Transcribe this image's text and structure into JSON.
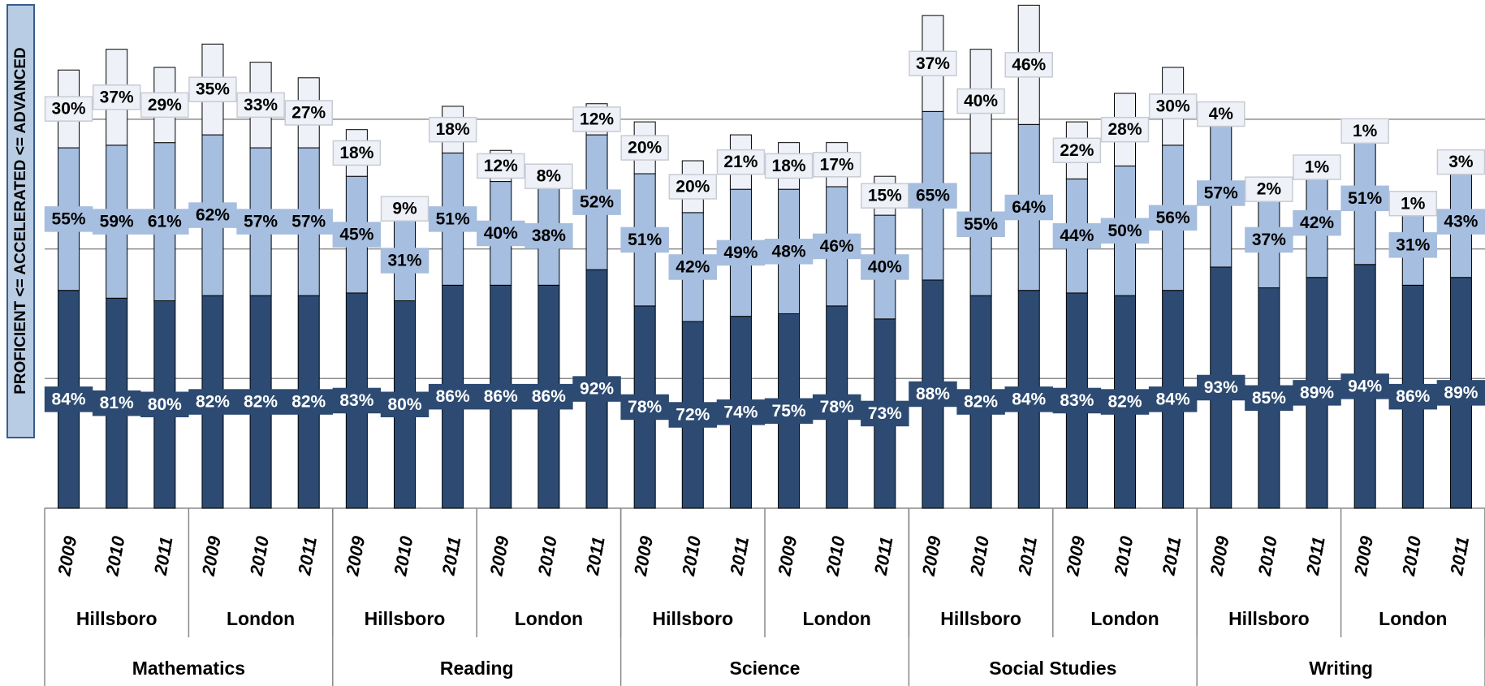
{
  "chart_data": {
    "type": "stacked_bar",
    "y_label": "PROFICIENT <= ACCELERATED <= ADVANCED",
    "categories": [
      "2009",
      "2010",
      "2011",
      "2009",
      "2010",
      "2011",
      "2009",
      "2010",
      "2011",
      "2009",
      "2010",
      "2011",
      "2009",
      "2010",
      "2011",
      "2009",
      "2010",
      "2011",
      "2009",
      "2010",
      "2011",
      "2009",
      "2010",
      "2011",
      "2009",
      "2010",
      "2011",
      "2009",
      "2010",
      "2011"
    ],
    "districts": [
      "Hillsboro",
      "London",
      "Hillsboro",
      "London",
      "Hillsboro",
      "London",
      "Hillsboro",
      "London",
      "Hillsboro",
      "London"
    ],
    "subjects": [
      "Mathematics",
      "Reading",
      "Science",
      "Social Studies",
      "Writing"
    ],
    "series": [
      {
        "color": "#2d4b72",
        "label_color": "#ffffff",
        "values": [
          84,
          81,
          80,
          82,
          82,
          82,
          83,
          80,
          86,
          86,
          86,
          92,
          78,
          72,
          74,
          75,
          78,
          73,
          88,
          82,
          84,
          83,
          82,
          84,
          93,
          85,
          89,
          94,
          86,
          89
        ],
        "value_labels": [
          "84%",
          "81%",
          "80%",
          "82%",
          "82%",
          "82%",
          "83%",
          "80%",
          "86%",
          "86%",
          "86%",
          "92%",
          "78%",
          "72%",
          "74%",
          "75%",
          "78%",
          "73%",
          "88%",
          "82%",
          "84%",
          "83%",
          "82%",
          "84%",
          "93%",
          "85%",
          "89%",
          "94%",
          "86%",
          "89%"
        ]
      },
      {
        "color": "#a6bedf",
        "label_color": "#000000",
        "values": [
          55,
          59,
          61,
          62,
          57,
          57,
          45,
          31,
          51,
          40,
          38,
          52,
          51,
          42,
          49,
          48,
          46,
          40,
          65,
          55,
          64,
          44,
          50,
          56,
          57,
          37,
          42,
          51,
          31,
          43
        ],
        "value_labels": [
          "55%",
          "59%",
          "61%",
          "62%",
          "57%",
          "57%",
          "45%",
          "31%",
          "51%",
          "40%",
          "38%",
          "52%",
          "51%",
          "42%",
          "49%",
          "48%",
          "46%",
          "40%",
          "65%",
          "55%",
          "64%",
          "44%",
          "50%",
          "56%",
          "57%",
          "37%",
          "42%",
          "51%",
          "31%",
          "43%"
        ]
      },
      {
        "color": "#eef2f8",
        "label_color": "#000000",
        "values": [
          30,
          37,
          29,
          35,
          33,
          27,
          18,
          9,
          18,
          12,
          8,
          12,
          20,
          20,
          21,
          18,
          17,
          15,
          37,
          40,
          46,
          22,
          28,
          30,
          4,
          2,
          1,
          1,
          1,
          3
        ],
        "value_labels": [
          "30%",
          "37%",
          "29%",
          "35%",
          "33%",
          "27%",
          "18%",
          "9%",
          "18%",
          "12%",
          "8%",
          "12%",
          "20%",
          "20%",
          "21%",
          "18%",
          "17%",
          "15%",
          "37%",
          "40%",
          "46%",
          "22%",
          "28%",
          "30%",
          "4%",
          "2%",
          "1%",
          "1%",
          "1%",
          "3%"
        ]
      }
    ],
    "ylim": [
      0,
      196
    ],
    "yticks": [
      0,
      50,
      100,
      150
    ],
    "tick_labels": false,
    "grid": true
  }
}
